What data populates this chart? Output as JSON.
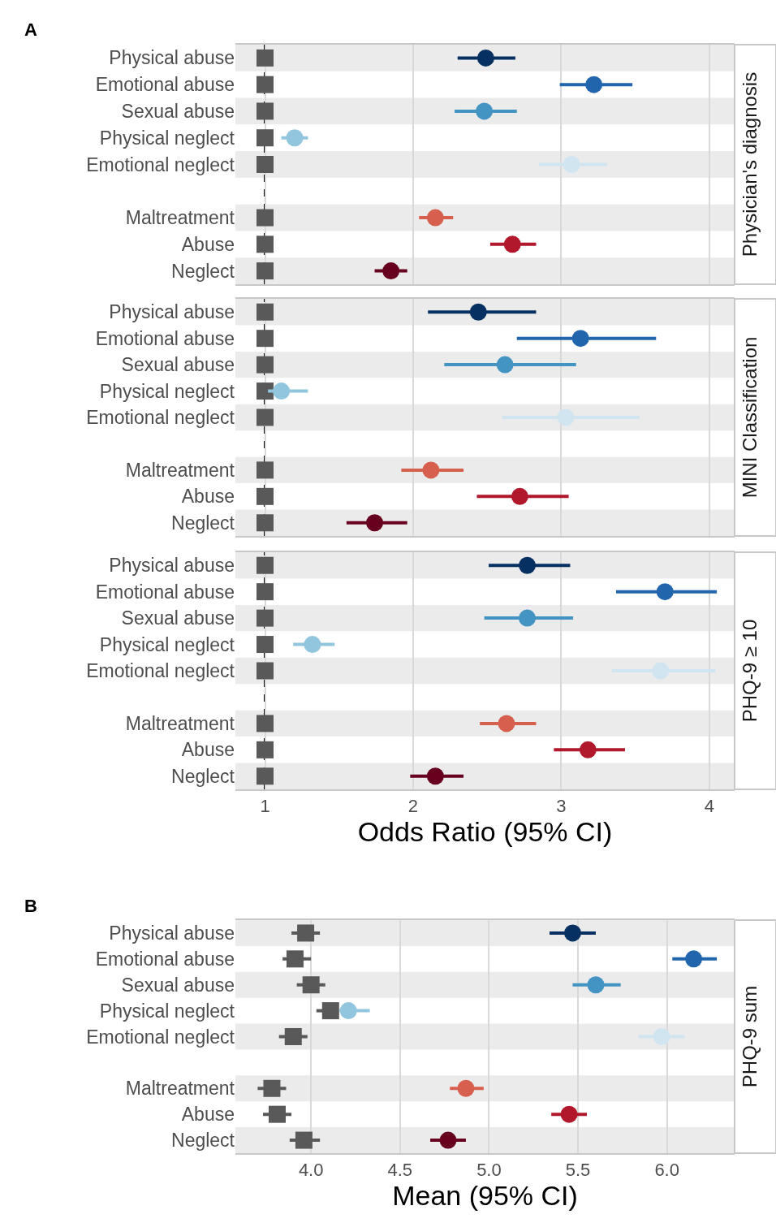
{
  "chart_data": [
    {
      "type": "scatter",
      "orientation": "horizontal",
      "title": "Physician's diagnosis",
      "annotations": [
        "A"
      ],
      "categories": [
        "Physical abuse",
        "Emotional abuse",
        "Sexual abuse",
        "Physical neglect",
        "Emotional neglect",
        null,
        "Maltreatment",
        "Abuse",
        "Neglect"
      ],
      "xlim": [
        0.8,
        4.17
      ],
      "xticks": [
        1,
        2,
        3,
        4
      ],
      "tick_labels": "y",
      "grid": "x",
      "legend": false,
      "series": [
        {
          "color": "#595959",
          "marker": "square",
          "values": [
            1,
            1,
            1,
            1,
            1,
            null,
            1,
            1,
            1
          ]
        },
        {
          "marker": "circle",
          "colors": [
            "#053061",
            "#2166ac",
            "#4393c3",
            "#92c5de",
            "#d1e5f0",
            null,
            "#d6604d",
            "#b2182b",
            "#67001f"
          ],
          "values": [
            2.49,
            3.22,
            2.48,
            1.2,
            3.07,
            null,
            2.15,
            2.67,
            1.85
          ],
          "errors": [
            [
              2.3,
              2.69
            ],
            [
              2.99,
              3.48
            ],
            [
              2.28,
              2.7
            ],
            [
              1.11,
              1.29
            ],
            [
              2.85,
              3.31
            ],
            null,
            [
              2.04,
              2.27
            ],
            [
              2.52,
              2.83
            ],
            [
              1.74,
              1.96
            ]
          ]
        }
      ],
      "ref_lines": [
        {
          "axis": "x",
          "value": 1,
          "color": "#000000",
          "line_style": "dashed"
        }
      ]
    },
    {
      "type": "scatter",
      "orientation": "horizontal",
      "title": "MINI Classification",
      "categories": [
        "Physical abuse",
        "Emotional abuse",
        "Sexual abuse",
        "Physical neglect",
        "Emotional neglect",
        null,
        "Maltreatment",
        "Abuse",
        "Neglect"
      ],
      "xlim": [
        0.8,
        4.17
      ],
      "xticks": [
        1,
        2,
        3,
        4
      ],
      "tick_labels": "y",
      "grid": "x",
      "legend": false,
      "series": [
        {
          "color": "#595959",
          "marker": "square",
          "values": [
            1,
            1,
            1,
            1,
            1,
            null,
            1,
            1,
            1
          ]
        },
        {
          "marker": "circle",
          "colors": [
            "#053061",
            "#2166ac",
            "#4393c3",
            "#92c5de",
            "#d1e5f0",
            null,
            "#d6604d",
            "#b2182b",
            "#67001f"
          ],
          "values": [
            2.44,
            3.13,
            2.62,
            1.11,
            3.03,
            null,
            2.12,
            2.72,
            1.74
          ],
          "errors": [
            [
              2.1,
              2.83
            ],
            [
              2.7,
              3.64
            ],
            [
              2.21,
              3.1
            ],
            [
              1.02,
              1.29
            ],
            [
              2.6,
              3.53
            ],
            null,
            [
              1.92,
              2.34
            ],
            [
              2.43,
              3.05
            ],
            [
              1.55,
              1.96
            ]
          ]
        }
      ],
      "ref_lines": [
        {
          "axis": "x",
          "value": 1,
          "color": "#000000",
          "line_style": "dashed"
        }
      ]
    },
    {
      "type": "scatter",
      "orientation": "horizontal",
      "title": "PHQ-9 ≥ 10",
      "xlabel": "Odds Ratio (95% CI)",
      "categories": [
        "Physical abuse",
        "Emotional abuse",
        "Sexual abuse",
        "Physical neglect",
        "Emotional neglect",
        null,
        "Maltreatment",
        "Abuse",
        "Neglect"
      ],
      "xlim": [
        0.8,
        4.17
      ],
      "xticks": [
        1,
        2,
        3,
        4
      ],
      "grid": "x",
      "legend": false,
      "series": [
        {
          "color": "#595959",
          "marker": "square",
          "values": [
            1,
            1,
            1,
            1,
            1,
            null,
            1,
            1,
            1
          ]
        },
        {
          "marker": "circle",
          "colors": [
            "#053061",
            "#2166ac",
            "#4393c3",
            "#92c5de",
            "#d1e5f0",
            null,
            "#d6604d",
            "#b2182b",
            "#67001f"
          ],
          "values": [
            2.77,
            3.7,
            2.77,
            1.32,
            3.67,
            null,
            2.63,
            3.18,
            2.15
          ],
          "errors": [
            [
              2.51,
              3.06
            ],
            [
              3.37,
              4.05
            ],
            [
              2.48,
              3.08
            ],
            [
              1.19,
              1.47
            ],
            [
              3.34,
              4.04
            ],
            null,
            [
              2.45,
              2.83
            ],
            [
              2.95,
              3.43
            ],
            [
              1.98,
              2.34
            ]
          ]
        }
      ],
      "ref_lines": [
        {
          "axis": "x",
          "value": 1,
          "color": "#000000",
          "line_style": "dashed"
        }
      ]
    },
    {
      "type": "scatter",
      "orientation": "horizontal",
      "title": "PHQ-9 sum",
      "annotations": [
        "B"
      ],
      "xlabel": "Mean (95% CI)",
      "categories": [
        "Physical abuse",
        "Emotional abuse",
        "Sexual abuse",
        "Physical neglect",
        "Emotional neglect",
        null,
        "Maltreatment",
        "Abuse",
        "Neglect"
      ],
      "xlim": [
        3.575,
        6.38
      ],
      "xticks": [
        {
          "value": 4,
          "label": "4.0"
        },
        4.5,
        {
          "value": 5,
          "label": "5.0"
        },
        5.5,
        {
          "value": 6,
          "label": "6.0"
        }
      ],
      "grid": "x",
      "legend": false,
      "series": [
        {
          "color": "#595959",
          "marker": "square",
          "values": [
            3.97,
            3.91,
            4.0,
            4.11,
            3.9,
            null,
            3.78,
            3.81,
            3.96
          ],
          "errors": [
            [
              3.89,
              4.05
            ],
            [
              3.84,
              4.0
            ],
            [
              3.92,
              4.08
            ],
            [
              4.03,
              4.11
            ],
            [
              3.82,
              3.98
            ],
            null,
            [
              3.7,
              3.86
            ],
            [
              3.73,
              3.89
            ],
            [
              3.88,
              4.05
            ]
          ]
        },
        {
          "marker": "circle",
          "colors": [
            "#053061",
            "#2166ac",
            "#4393c3",
            "#92c5de",
            "#d1e5f0",
            null,
            "#d6604d",
            "#b2182b",
            "#67001f"
          ],
          "values": [
            5.47,
            6.15,
            5.6,
            4.21,
            5.97,
            null,
            4.87,
            5.45,
            4.77
          ],
          "errors": [
            [
              5.34,
              5.6
            ],
            [
              6.03,
              6.28
            ],
            [
              5.47,
              5.74
            ],
            [
              4.16,
              4.33
            ],
            [
              5.84,
              6.1
            ],
            null,
            [
              4.78,
              4.97
            ],
            [
              5.35,
              5.55
            ],
            [
              4.67,
              4.87
            ]
          ]
        }
      ]
    }
  ]
}
